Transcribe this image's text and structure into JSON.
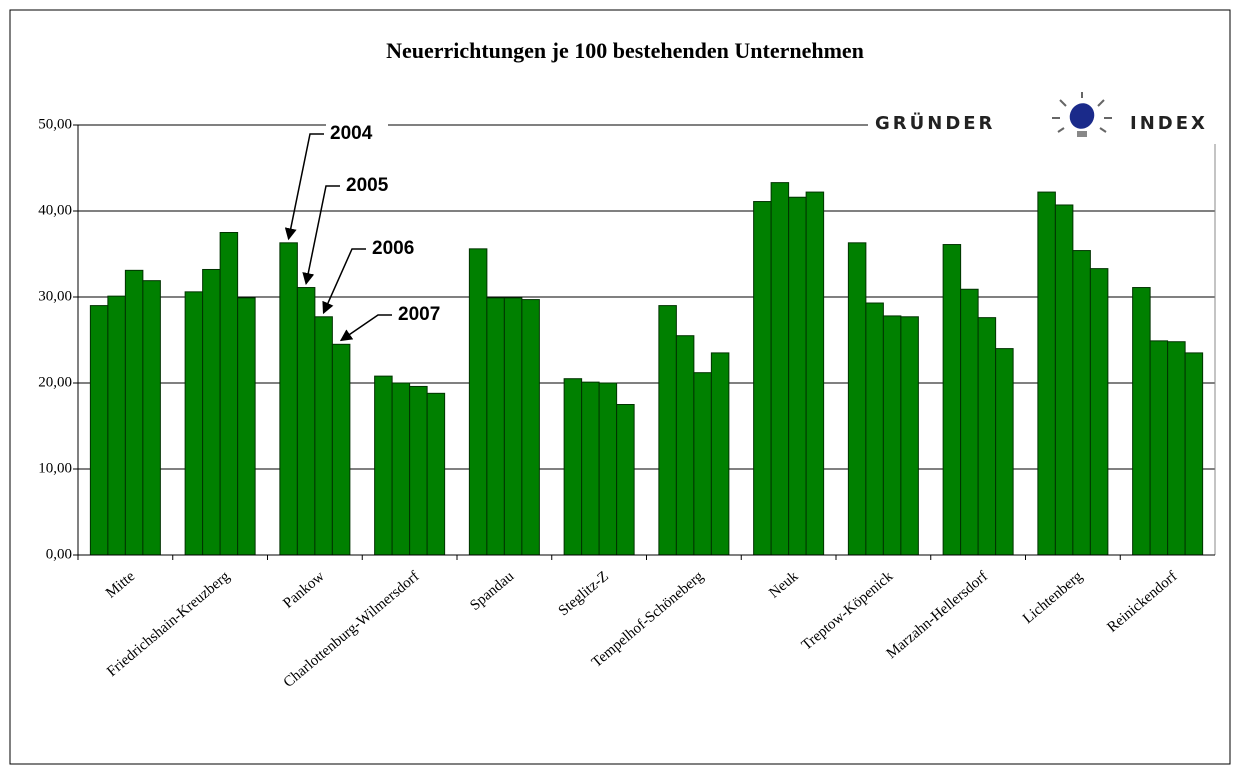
{
  "chart_data": {
    "type": "bar",
    "title": "Neuerrichtungen je 100 bestehenden Unternehmen",
    "logo": [
      "GRÜNDER",
      "INDEX"
    ],
    "categories": [
      "Mitte",
      "Friedrichshain-Kreuzberg",
      "Pankow",
      "Charlottenburg-Wilmersdorf",
      "Spandau",
      "Steglitz-Z",
      "Tempelhof-Schöneberg",
      "Neuk",
      "Treptow-Köpenick",
      "Marzahn-Hellersdorf",
      "Lichtenberg",
      "Reinickendorf"
    ],
    "series": [
      {
        "name": "2004",
        "color": "#008000",
        "values": [
          29.0,
          30.6,
          36.3,
          20.8,
          35.6,
          20.5,
          29.0,
          41.1,
          36.3,
          36.1,
          42.2,
          31.1
        ]
      },
      {
        "name": "2005",
        "color": "#008000",
        "values": [
          30.1,
          33.2,
          31.1,
          20.0,
          29.9,
          20.1,
          25.5,
          43.3,
          29.3,
          30.9,
          40.7,
          24.9
        ]
      },
      {
        "name": "2006",
        "color": "#008000",
        "values": [
          33.1,
          37.5,
          27.7,
          19.6,
          29.9,
          20.0,
          21.2,
          41.6,
          27.8,
          27.6,
          35.4,
          24.8
        ]
      },
      {
        "name": "2007",
        "color": "#008000",
        "values": [
          31.9,
          29.9,
          24.5,
          18.8,
          29.7,
          17.5,
          23.5,
          42.2,
          27.7,
          24.0,
          33.3,
          23.5
        ]
      }
    ],
    "ylim": [
      0,
      50
    ],
    "yticks": [
      {
        "value": 0,
        "label": "0,00"
      },
      {
        "value": 10,
        "label": "10,00"
      },
      {
        "value": 20,
        "label": "20,00"
      },
      {
        "value": 30,
        "label": "30,00"
      },
      {
        "value": 40,
        "label": "40,00"
      },
      {
        "value": 50,
        "label": "50,00"
      }
    ],
    "grid": true
  }
}
